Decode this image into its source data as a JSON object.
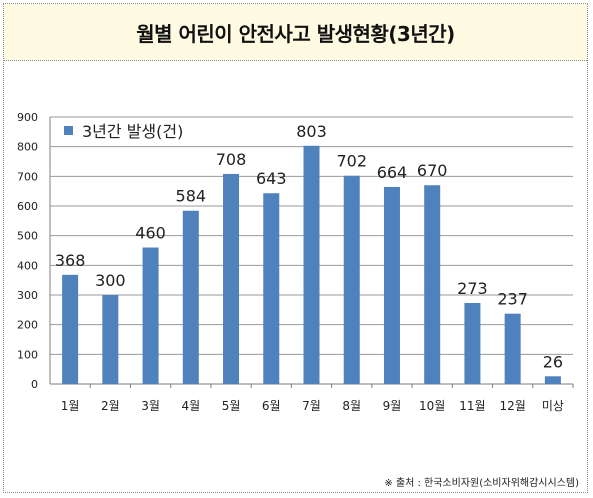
{
  "title": "월별 어린이 안전사고 발생현황(3년간)",
  "source": "※ 출처 : 한국소비자원(소비자위해감시시스템)",
  "colors": {
    "bar": "#4f81bd",
    "title_bg": "#fffbe2",
    "grid": "#9a9a9a"
  },
  "chart_data": {
    "type": "bar",
    "categories": [
      "1월",
      "2월",
      "3월",
      "4월",
      "5월",
      "6월",
      "7월",
      "8월",
      "9월",
      "10월",
      "11월",
      "12월",
      "미상"
    ],
    "series": [
      {
        "name": "3년간 발생(건)",
        "values": [
          368,
          300,
          460,
          584,
          708,
          643,
          803,
          702,
          664,
          670,
          273,
          237,
          26
        ]
      }
    ],
    "ylim": [
      0,
      900
    ],
    "yticks": [
      0,
      100,
      200,
      300,
      400,
      500,
      600,
      700,
      800,
      900
    ],
    "grid": true,
    "legend": "top-left",
    "data_labels": true
  }
}
